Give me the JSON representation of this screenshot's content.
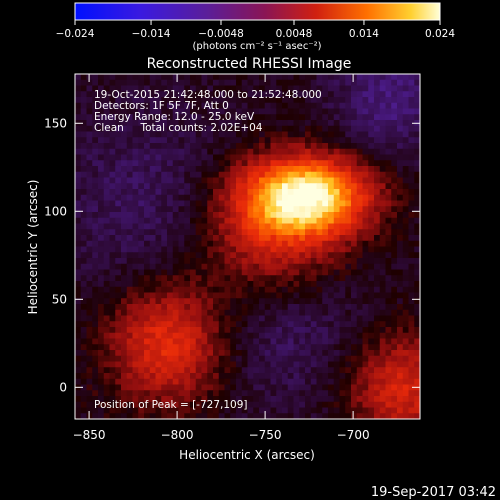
{
  "colorbar": {
    "ticks": [
      "-0.024",
      "-0.014",
      "-0.0048",
      "0.0048",
      "0.014",
      "0.024"
    ],
    "tick_values": [
      -0.024,
      -0.014,
      -0.0048,
      0.0048,
      0.014,
      0.024
    ],
    "range": [
      -0.024,
      0.024
    ],
    "unit_label": "(photons cm⁻² s⁻¹ asec⁻²)"
  },
  "chart_data": {
    "type": "heatmap",
    "title": "Reconstructed RHESSI Image",
    "xlabel": "Heliocentric X (arcsec)",
    "ylabel": "Heliocentric Y (arcsec)",
    "xlim": [
      -858,
      -662
    ],
    "ylim": [
      -18,
      178
    ],
    "xticks": [
      -850,
      -800,
      -750,
      -700
    ],
    "yticks": [
      0,
      50,
      100,
      150
    ],
    "colormap": "hot-blue (blue → purple → red → orange → yellow → white)",
    "annotations": [
      "19-Oct-2015 21:42:48.000 to 21:52:48.000",
      "Detectors: 1F 5F 7F, Att 0",
      "Energy Range: 12.0 - 25.0 keV",
      "Clean     Total counts: 2.02E+04"
    ],
    "peak_label": "Position of Peak = [-727,109]",
    "peak": [
      -727,
      109
    ],
    "features": [
      {
        "x": -727,
        "y": 109,
        "value": 0.024
      },
      {
        "x": -745,
        "y": 80,
        "value": 0.012
      },
      {
        "x": -805,
        "y": 25,
        "value": 0.013
      },
      {
        "x": -672,
        "y": 0,
        "value": 0.011
      },
      {
        "x": -740,
        "y": 50,
        "value": -0.006
      },
      {
        "x": -820,
        "y": 105,
        "value": -0.004
      },
      {
        "x": -680,
        "y": 165,
        "value": -0.006
      }
    ]
  },
  "footer_timestamp": "19-Sep-2017 03:42"
}
